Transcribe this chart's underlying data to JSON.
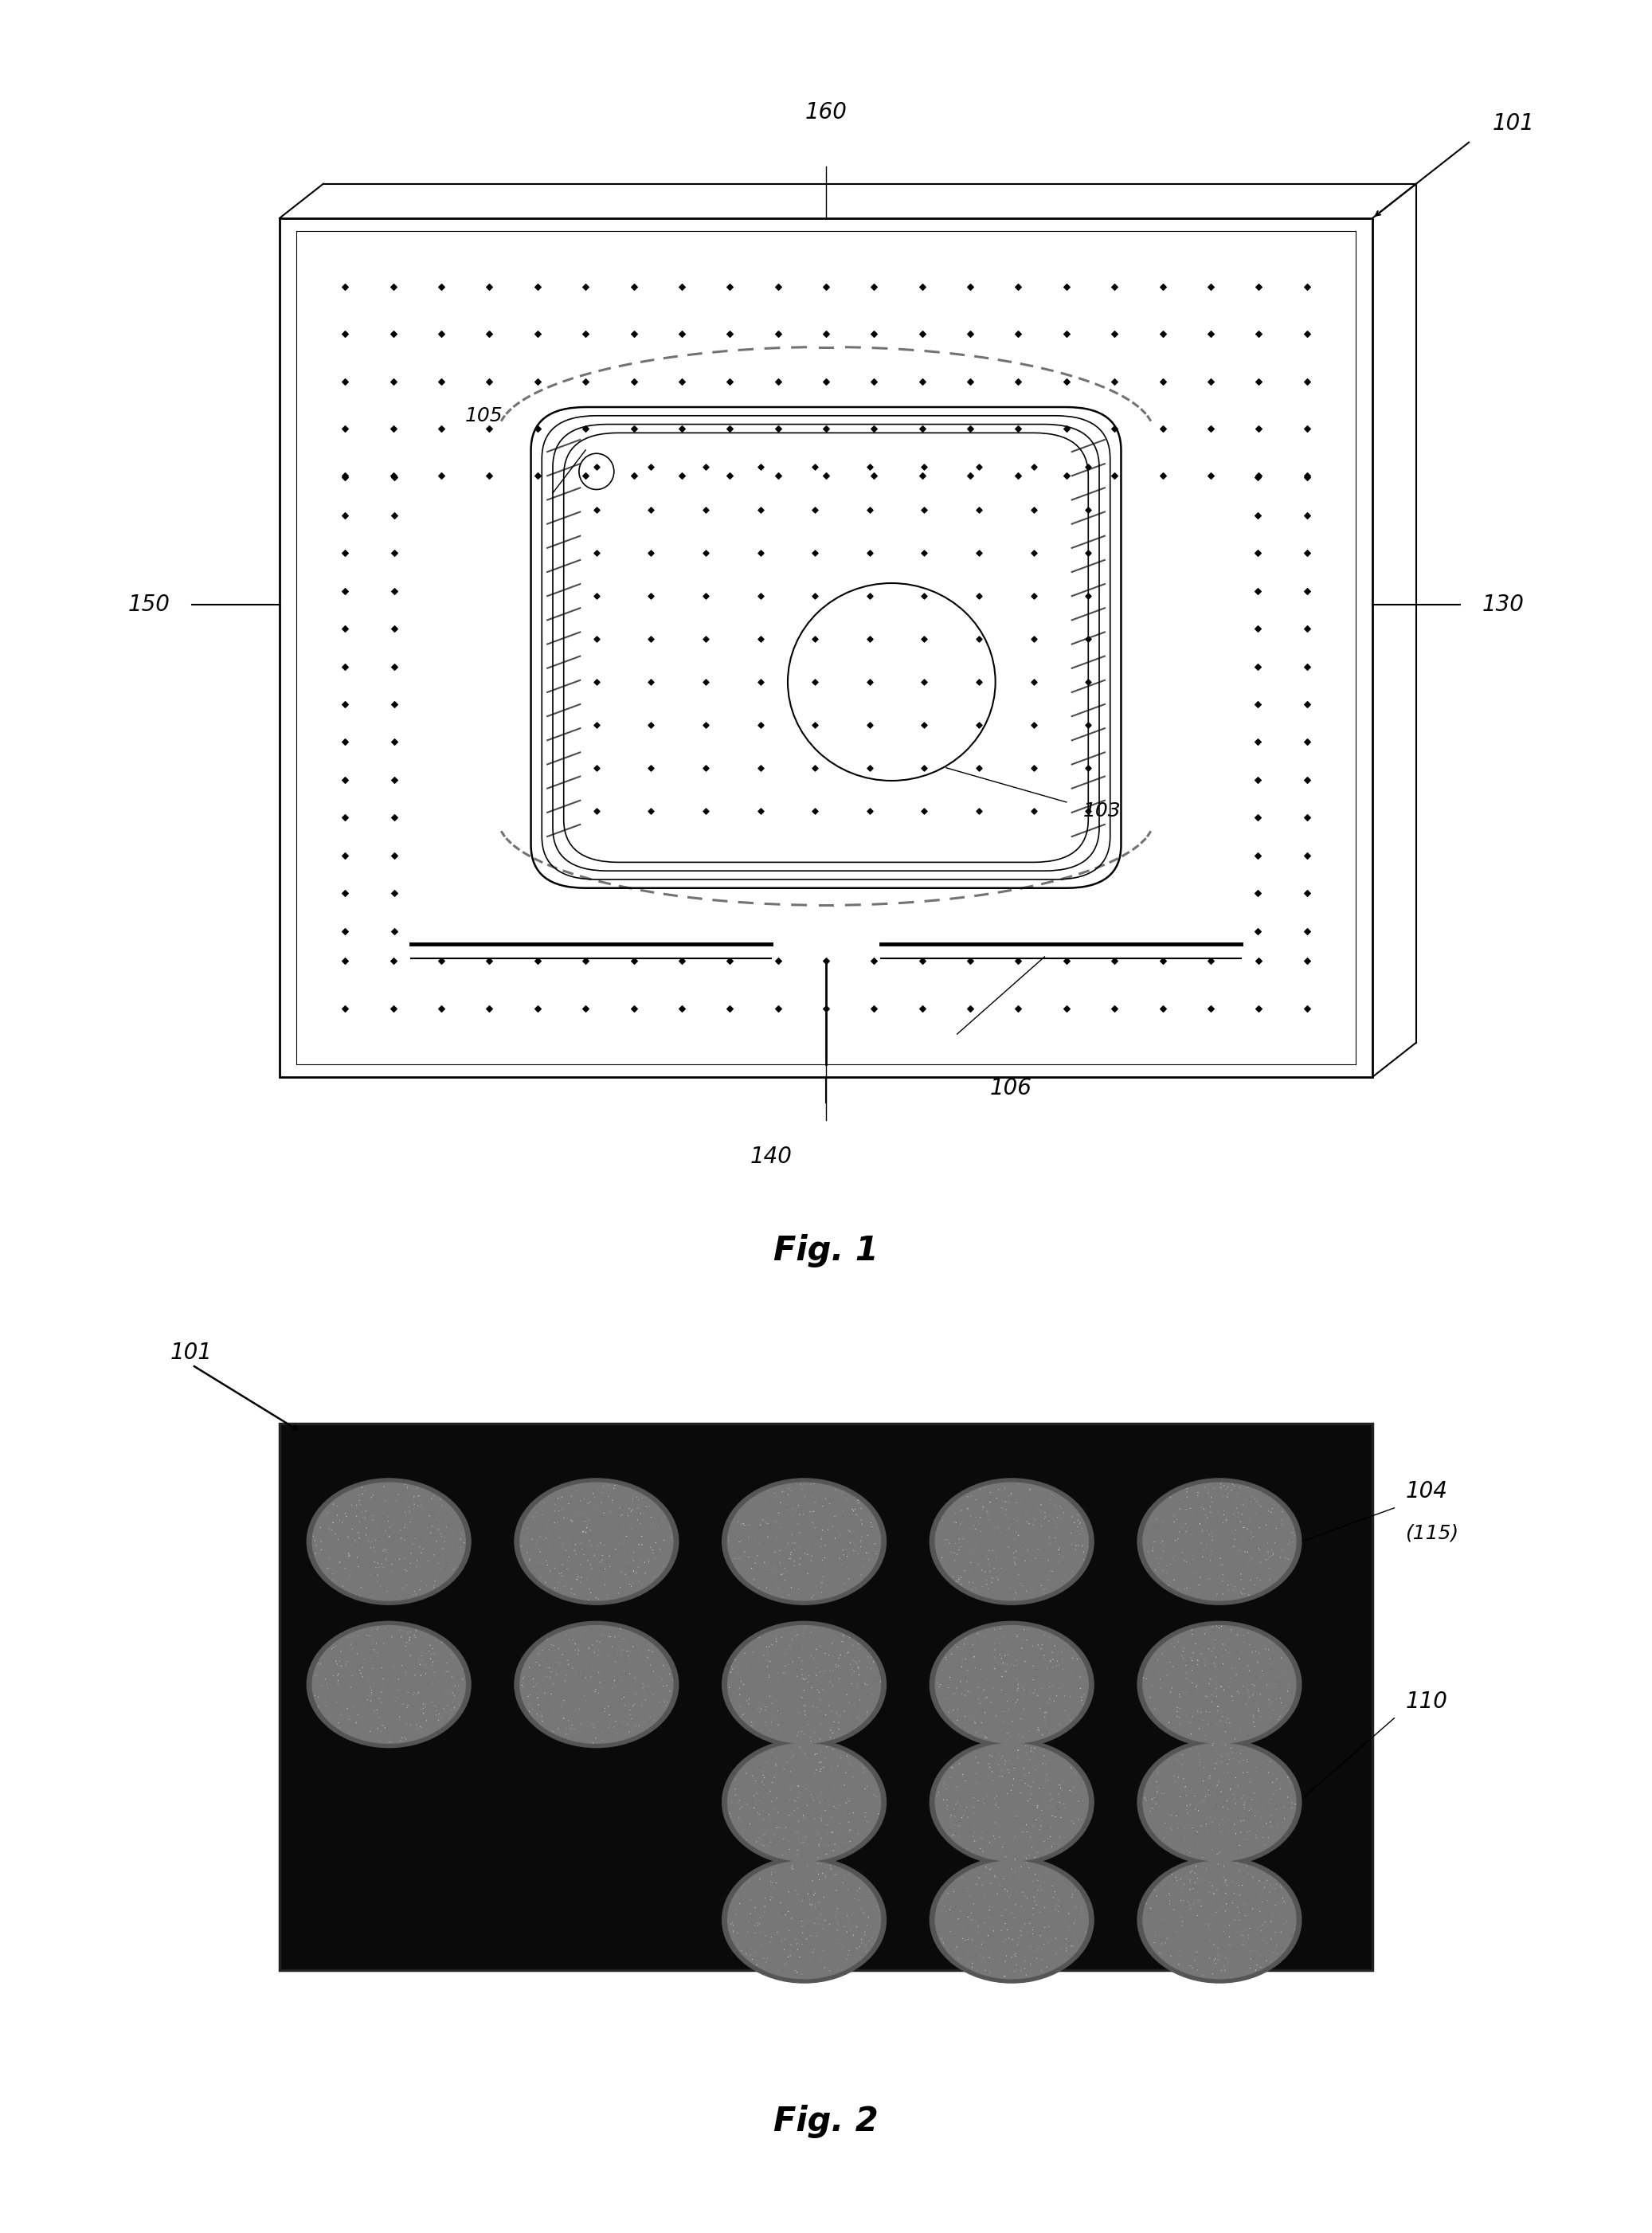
{
  "fig_width": 20.74,
  "fig_height": 28.03,
  "bg_color": "#ffffff",
  "fig1_label": "Fig. 1",
  "fig2_label": "Fig. 2",
  "labels": {
    "101_top": "101",
    "160": "160",
    "105": "105",
    "130": "130",
    "150": "150",
    "103": "103",
    "106": "106",
    "140": "140",
    "101_bottom": "101",
    "104": "104",
    "115": "(115)",
    "110": "110"
  }
}
